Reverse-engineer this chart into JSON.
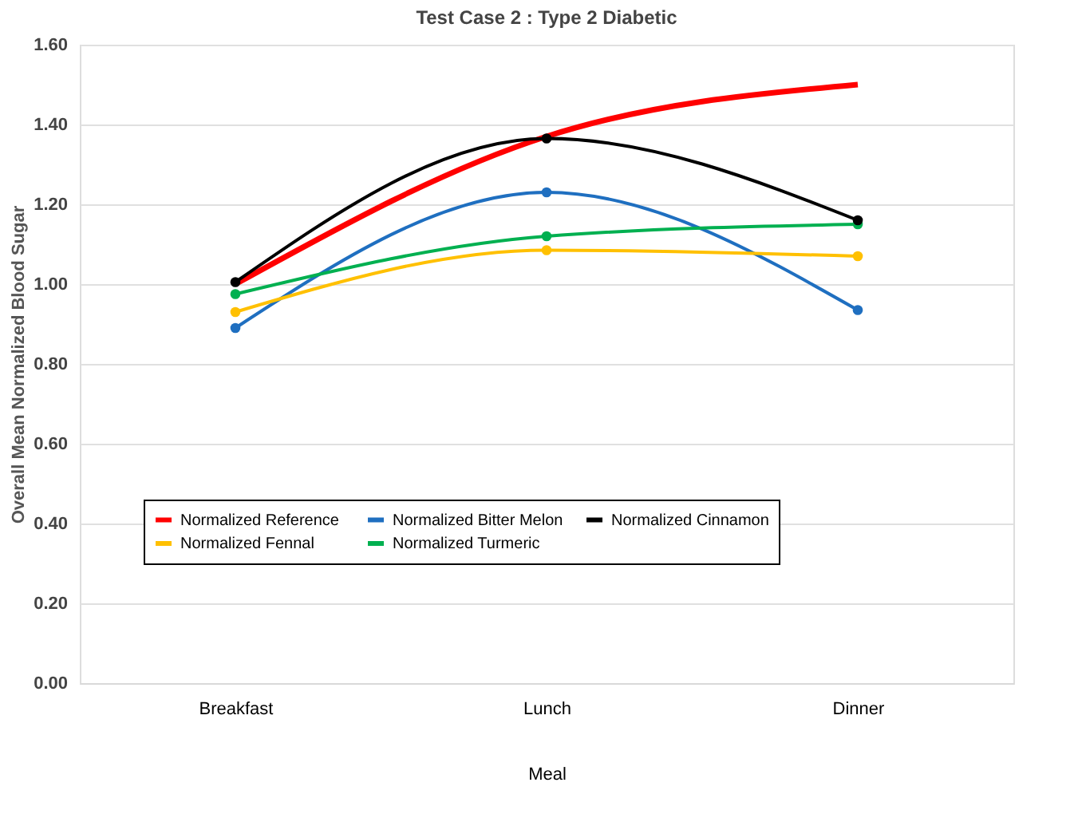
{
  "chart_data": {
    "type": "line",
    "title": "Test Case 2 : Type 2 Diabetic",
    "xlabel": "Meal",
    "ylabel": "Overall Mean Normalized Blood Sugar",
    "categories": [
      "Breakfast",
      "Lunch",
      "Dinner"
    ],
    "series": [
      {
        "name": "Normalized  Reference",
        "color": "#ff0000",
        "values": [
          1.0,
          1.37,
          1.5
        ],
        "marker": "none"
      },
      {
        "name": "Normalized Bitter Melon",
        "color": "#1f6fc0",
        "values": [
          0.89,
          1.23,
          0.935
        ],
        "marker": "circle"
      },
      {
        "name": "Normalized Cinnamon",
        "color": "#000000",
        "values": [
          1.005,
          1.365,
          1.16
        ],
        "marker": "circle"
      },
      {
        "name": "Normalized Fennal",
        "color": "#ffc000",
        "values": [
          0.93,
          1.085,
          1.07
        ],
        "marker": "circle"
      },
      {
        "name": "Normalized Turmeric",
        "color": "#00b050",
        "values": [
          0.975,
          1.12,
          1.15
        ],
        "marker": "circle"
      }
    ],
    "ylim": [
      0,
      1.6
    ],
    "yticks": [
      {
        "value": 0,
        "label": "0.00"
      },
      {
        "value": 0.2,
        "label": "0.20"
      },
      {
        "value": 0.4,
        "label": "0.40"
      },
      {
        "value": 0.6,
        "label": "0.60"
      },
      {
        "value": 0.8,
        "label": "0.80"
      },
      {
        "value": 1.0,
        "label": "1.00"
      },
      {
        "value": 1.2,
        "label": "1.20"
      },
      {
        "value": 1.4,
        "label": "1.40"
      },
      {
        "value": 1.6,
        "label": "1.60"
      }
    ],
    "grid": "y",
    "legend": "bottom",
    "line_style": "solid"
  }
}
